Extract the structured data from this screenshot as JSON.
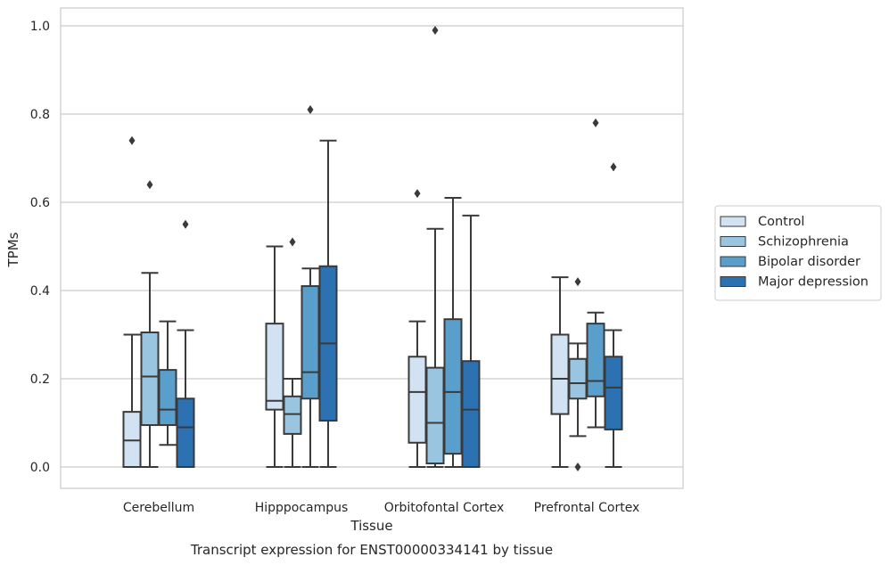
{
  "chart_data": {
    "type": "box",
    "title": "",
    "xlabel": "Tissue",
    "ylabel": "TPMs",
    "caption": "Transcript expression for ENST00000334141 by tissue",
    "ylim": [
      -0.05,
      1.04
    ],
    "yticks": [
      "0.0",
      "0.2",
      "0.4",
      "0.6",
      "0.8",
      "1.0"
    ],
    "grid": true,
    "legend_position": "right",
    "categories": [
      "Cerebellum",
      "Hipppocampus",
      "Orbitofontal Cortex",
      "Prefrontal Cortex"
    ],
    "series": [
      {
        "name": "Control",
        "color": "#d1e2f2",
        "boxes": [
          {
            "whislo": 0.0,
            "q1": 0.0,
            "med": 0.06,
            "q3": 0.125,
            "whishi": 0.3,
            "fliers": [
              0.74
            ]
          },
          {
            "whislo": 0.0,
            "q1": 0.13,
            "med": 0.15,
            "q3": 0.325,
            "whishi": 0.5,
            "fliers": []
          },
          {
            "whislo": 0.0,
            "q1": 0.055,
            "med": 0.17,
            "q3": 0.25,
            "whishi": 0.33,
            "fliers": [
              0.62
            ]
          },
          {
            "whislo": 0.0,
            "q1": 0.12,
            "med": 0.2,
            "q3": 0.3,
            "whishi": 0.43,
            "fliers": []
          }
        ]
      },
      {
        "name": "Schizophrenia",
        "color": "#9ac5e0",
        "boxes": [
          {
            "whislo": 0.0,
            "q1": 0.095,
            "med": 0.205,
            "q3": 0.305,
            "whishi": 0.44,
            "fliers": [
              0.64
            ]
          },
          {
            "whislo": 0.0,
            "q1": 0.075,
            "med": 0.12,
            "q3": 0.16,
            "whishi": 0.2,
            "fliers": [
              0.51
            ]
          },
          {
            "whislo": 0.0,
            "q1": 0.008,
            "med": 0.1,
            "q3": 0.225,
            "whishi": 0.54,
            "fliers": [
              0.99
            ]
          },
          {
            "whislo": 0.07,
            "q1": 0.155,
            "med": 0.19,
            "q3": 0.245,
            "whishi": 0.28,
            "fliers": [
              0.0,
              0.42
            ]
          }
        ]
      },
      {
        "name": "Bipolar disorder",
        "color": "#5a9fcc",
        "boxes": [
          {
            "whislo": 0.05,
            "q1": 0.095,
            "med": 0.13,
            "q3": 0.22,
            "whishi": 0.33,
            "fliers": []
          },
          {
            "whislo": 0.0,
            "q1": 0.155,
            "med": 0.215,
            "q3": 0.41,
            "whishi": 0.45,
            "fliers": [
              0.81
            ]
          },
          {
            "whislo": 0.0,
            "q1": 0.03,
            "med": 0.17,
            "q3": 0.335,
            "whishi": 0.61,
            "fliers": []
          },
          {
            "whislo": 0.09,
            "q1": 0.16,
            "med": 0.195,
            "q3": 0.325,
            "whishi": 0.35,
            "fliers": [
              0.78
            ]
          }
        ]
      },
      {
        "name": "Major depression",
        "color": "#2c72b3",
        "boxes": [
          {
            "whislo": 0.0,
            "q1": 0.0,
            "med": 0.09,
            "q3": 0.155,
            "whishi": 0.31,
            "fliers": [
              0.55
            ]
          },
          {
            "whislo": 0.0,
            "q1": 0.105,
            "med": 0.28,
            "q3": 0.455,
            "whishi": 0.74,
            "fliers": []
          },
          {
            "whislo": 0.0,
            "q1": 0.0,
            "med": 0.13,
            "q3": 0.24,
            "whishi": 0.57,
            "fliers": []
          },
          {
            "whislo": 0.0,
            "q1": 0.085,
            "med": 0.18,
            "q3": 0.25,
            "whishi": 0.31,
            "fliers": [
              0.68
            ]
          }
        ]
      }
    ]
  }
}
